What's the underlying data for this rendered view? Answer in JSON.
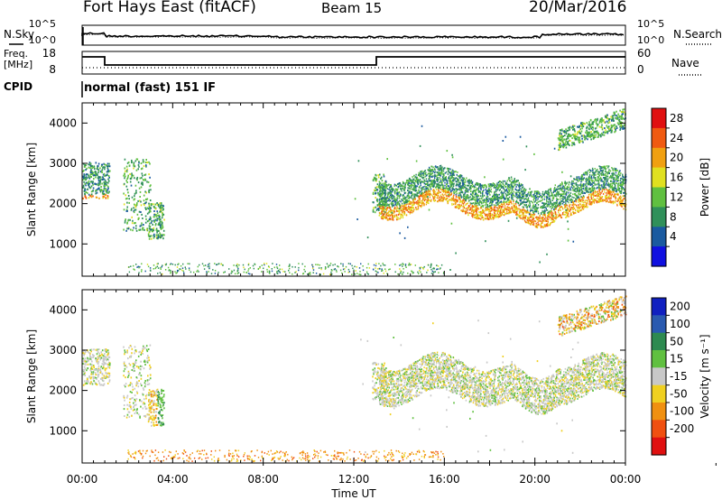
{
  "header": {
    "title_left": "Fort Hays East (fitACF)",
    "title_mid": "Beam 15",
    "title_right": "20/Mar/2016"
  },
  "nsky_panel": {
    "left_label": "N.Sky",
    "right_label": "N.Search",
    "left_ticks": [
      "10^5",
      "10^0"
    ],
    "right_ticks": [
      "10^5",
      "10^0"
    ]
  },
  "freq_panel": {
    "left_label_1": "Freq.",
    "left_label_2": "[MHz]",
    "right_label": "Nave",
    "left_ticks": [
      "18",
      "8"
    ],
    "right_ticks": [
      "60",
      "0"
    ]
  },
  "cpid_panel": {
    "label": "CPID",
    "program": "normal (fast) 151 IF"
  },
  "power_colorbar": {
    "label": "Power [dB]",
    "ticks": [
      "28",
      "24",
      "20",
      "16",
      "12",
      "8",
      "4"
    ],
    "colors": [
      "#e01010",
      "#f05a10",
      "#f0a010",
      "#e0e020",
      "#60c040",
      "#30905a",
      "#1a5aa0",
      "#1010e0"
    ]
  },
  "velocity_colorbar": {
    "label": "Velocity [m s⁻¹]",
    "ticks": [
      "200",
      "100",
      "50",
      "15",
      "-15",
      "-50",
      "-100",
      "-200"
    ],
    "colors": [
      "#1020c0",
      "#2a5ab0",
      "#2e8a50",
      "#60c040",
      "#c8c8c8",
      "#f0d020",
      "#f09010",
      "#f05010",
      "#e01010"
    ]
  },
  "chart_data": [
    {
      "type": "heatmap",
      "name_hint": "power",
      "ylabel": "Slant Range [km]",
      "yticks": [
        1000,
        2000,
        3000,
        4000
      ],
      "ylim": [
        200,
        4500
      ],
      "xlim": [
        0,
        24
      ],
      "x_tick_labels": [
        "00:00",
        "04:00",
        "08:00",
        "12:00",
        "16:00",
        "20:00",
        "00:00"
      ],
      "x_tick_values": [
        0,
        4,
        8,
        12,
        16,
        20,
        24
      ]
    },
    {
      "type": "heatmap",
      "name_hint": "velocity",
      "ylabel": "Slant Range [km]",
      "yticks": [
        1000,
        2000,
        3000,
        4000
      ],
      "ylim": [
        200,
        4500
      ],
      "xlim": [
        0,
        24
      ],
      "x_tick_labels": [
        "00:00",
        "04:00",
        "08:00",
        "12:00",
        "16:00",
        "20:00",
        "00:00"
      ],
      "x_tick_values": [
        0,
        4,
        8,
        12,
        16,
        20,
        24
      ],
      "xlabel": "Time UT"
    }
  ]
}
